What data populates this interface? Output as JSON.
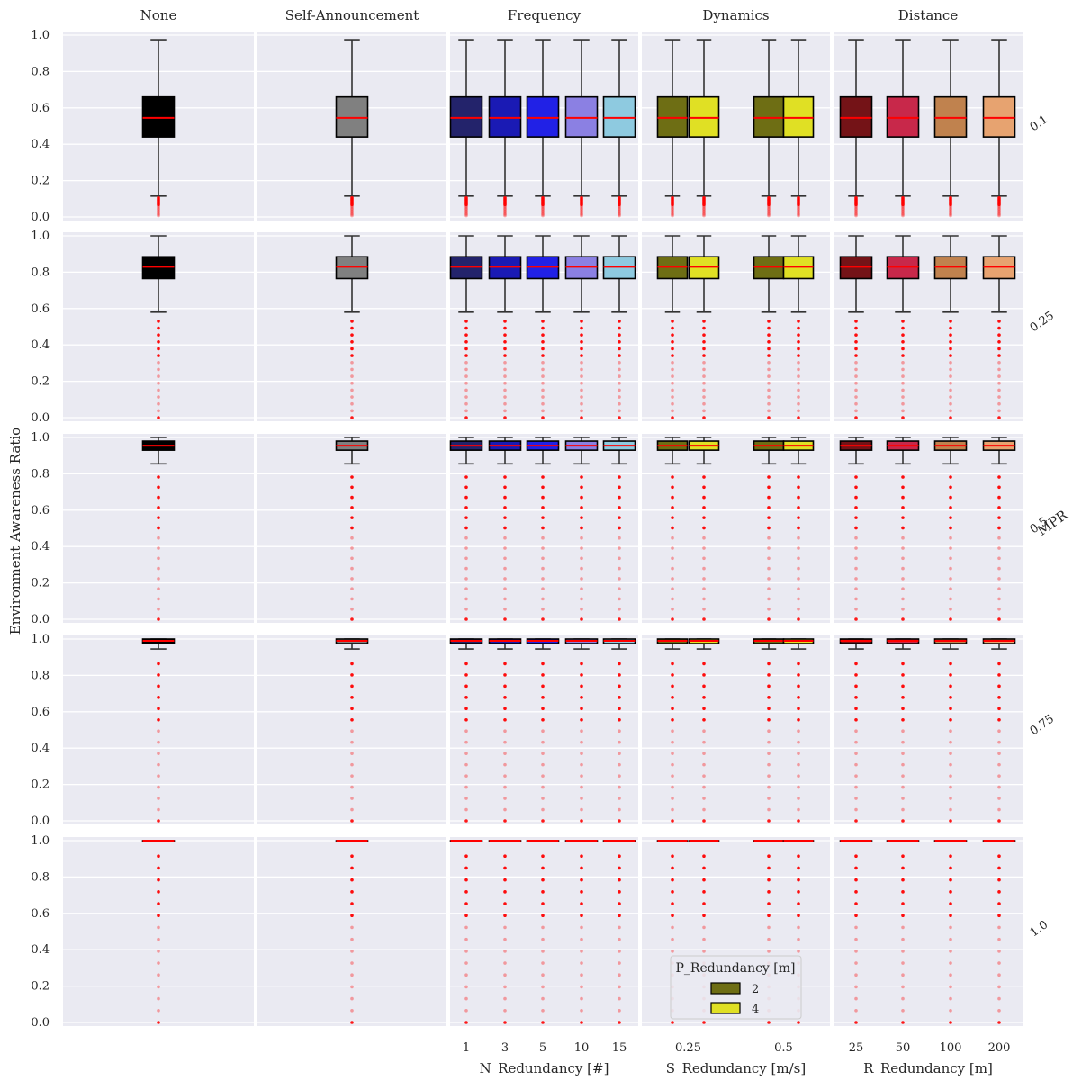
{
  "chart_data": {
    "type": "box",
    "ylabel": "Environment Awareness Ratio",
    "row_axis_label": "MPR",
    "rows": [
      "0.1",
      "0.25",
      "0.5",
      "0.75",
      "1.0"
    ],
    "ylim": [
      0,
      1
    ],
    "yticks": [
      "0.0",
      "0.2",
      "0.4",
      "0.6",
      "0.8",
      "1.0"
    ],
    "grid": true,
    "columns": [
      {
        "title": "None",
        "xlabel": "",
        "categories": [
          ""
        ]
      },
      {
        "title": "Self-Announcement",
        "xlabel": "",
        "categories": [
          ""
        ]
      },
      {
        "title": "Frequency",
        "xlabel": "N_Redundancy [#]",
        "categories": [
          "1",
          "3",
          "5",
          "10",
          "15"
        ]
      },
      {
        "title": "Dynamics",
        "xlabel": "S_Redundancy [m/s]",
        "categories": [
          "0.25",
          "0.5"
        ],
        "hue": [
          "2",
          "4"
        ]
      },
      {
        "title": "Distance",
        "xlabel": "R_Redundancy [m]",
        "categories": [
          "25",
          "50",
          "100",
          "200"
        ]
      }
    ],
    "series_colors": {
      "None": "#000000",
      "Self-Announcement": "#808080",
      "Frequency": [
        "#23236b",
        "#1a1ab4",
        "#2121e6",
        "#8b80e3",
        "#8ecae0"
      ],
      "Dynamics": [
        "#6e6e14",
        "#e0e024"
      ],
      "Distance": [
        "#741317",
        "#c8284a",
        "#c0824e",
        "#e7a370"
      ]
    },
    "median_color": "#ff0000",
    "outlier_color": "#ff0000",
    "box_stats": {
      "0.1": {
        "q1": 0.44,
        "median": 0.545,
        "q3": 0.66,
        "whisker_low": 0.115,
        "whisker_high": 0.975
      },
      "0.25": {
        "q1": 0.765,
        "median": 0.83,
        "q3": 0.885,
        "whisker_low": 0.58,
        "whisker_high": 1.0
      },
      "0.5": {
        "q1": 0.93,
        "median": 0.955,
        "q3": 0.98,
        "whisker_low": 0.855,
        "whisker_high": 1.0
      },
      "0.75": {
        "q1": 0.975,
        "median": 0.99,
        "q3": 1.0,
        "whisker_low": 0.945,
        "whisker_high": 1.0
      },
      "1.0": {
        "q1": 1.0,
        "median": 1.0,
        "q3": 1.0,
        "whisker_low": 1.0,
        "whisker_high": 1.0
      }
    },
    "legend": {
      "title": "P_Redundancy [m]",
      "entries": [
        {
          "label": "2",
          "color": "#6e6e14"
        },
        {
          "label": "4",
          "color": "#e0e024"
        }
      ],
      "placement": "bottom-right of Dynamics column"
    }
  }
}
